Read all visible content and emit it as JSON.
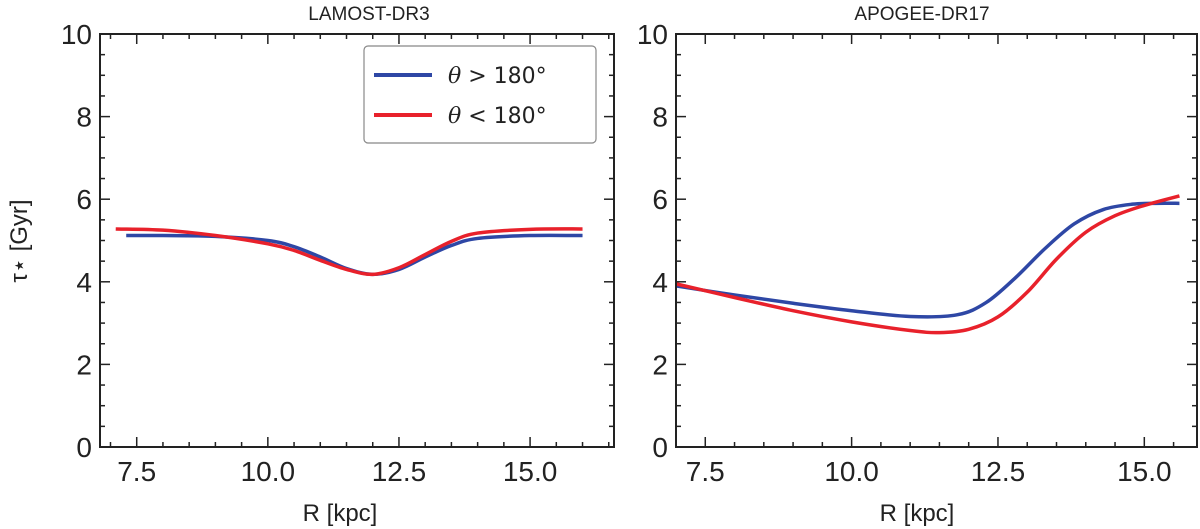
{
  "colors": {
    "blue": "#2e47a5",
    "red": "#e8212b",
    "axis": "#222222"
  },
  "chart_data": [
    {
      "type": "line",
      "title": "LAMOST-DR3",
      "xlabel": "R [kpc]",
      "ylabel": "τ⋆ [Gyr]",
      "xlim": [
        6.8,
        16.6
      ],
      "ylim": [
        0,
        10
      ],
      "xticks": [
        7.5,
        10.0,
        12.5,
        15.0
      ],
      "xtick_labels": [
        "7.5",
        "10.0",
        "12.5",
        "15.0"
      ],
      "yticks": [
        0,
        2,
        4,
        6,
        8,
        10
      ],
      "ytick_labels": [
        "0",
        "2",
        "4",
        "6",
        "8",
        "10"
      ],
      "legend": {
        "placement": "top-right"
      },
      "series": [
        {
          "name": "θ > 180°",
          "name_theta": "θ",
          "name_rest": " > 180°",
          "color": "#2e47a5",
          "x": [
            7.3,
            8.0,
            9.0,
            10.0,
            10.5,
            11.0,
            11.5,
            12.0,
            12.5,
            13.0,
            13.5,
            14.0,
            15.0,
            16.0
          ],
          "y": [
            5.12,
            5.12,
            5.1,
            5.0,
            4.85,
            4.6,
            4.32,
            4.18,
            4.3,
            4.6,
            4.88,
            5.05,
            5.12,
            5.12
          ]
        },
        {
          "name": "θ < 180°",
          "name_theta": "θ",
          "name_rest": " < 180°",
          "color": "#e8212b",
          "x": [
            7.1,
            8.0,
            9.0,
            10.0,
            10.5,
            11.0,
            11.5,
            12.0,
            12.5,
            13.0,
            13.5,
            14.0,
            15.0,
            16.0
          ],
          "y": [
            5.28,
            5.25,
            5.12,
            4.92,
            4.76,
            4.52,
            4.3,
            4.18,
            4.34,
            4.66,
            4.98,
            5.18,
            5.27,
            5.28
          ]
        }
      ]
    },
    {
      "type": "line",
      "title": "APOGEE-DR17",
      "xlabel": "R [kpc]",
      "ylabel": "",
      "xlim": [
        7.0,
        15.9
      ],
      "ylim": [
        0,
        10
      ],
      "xticks": [
        7.5,
        10.0,
        12.5,
        15.0
      ],
      "xtick_labels": [
        "7.5",
        "10.0",
        "12.5",
        "15.0"
      ],
      "yticks": [
        0,
        2,
        4,
        6,
        8,
        10
      ],
      "ytick_labels": [
        "0",
        "2",
        "4",
        "6",
        "8",
        "10"
      ],
      "series": [
        {
          "name": "θ > 180°",
          "color": "#2e47a5",
          "x": [
            7.0,
            8.0,
            9.0,
            10.0,
            11.0,
            11.8,
            12.3,
            12.8,
            13.3,
            13.8,
            14.3,
            14.8,
            15.2,
            15.6
          ],
          "y": [
            3.9,
            3.68,
            3.48,
            3.3,
            3.16,
            3.2,
            3.5,
            4.1,
            4.8,
            5.4,
            5.75,
            5.88,
            5.9,
            5.9
          ]
        },
        {
          "name": "θ < 180°",
          "color": "#e8212b",
          "x": [
            7.0,
            8.0,
            9.0,
            10.0,
            11.0,
            11.5,
            12.0,
            12.5,
            13.0,
            13.5,
            14.0,
            14.5,
            15.0,
            15.6
          ],
          "y": [
            3.95,
            3.62,
            3.3,
            3.03,
            2.82,
            2.77,
            2.85,
            3.15,
            3.75,
            4.55,
            5.2,
            5.6,
            5.85,
            6.08
          ]
        }
      ]
    }
  ]
}
